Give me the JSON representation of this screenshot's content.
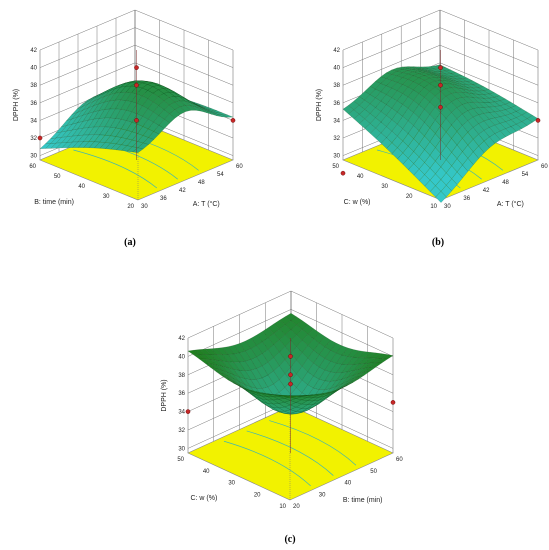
{
  "colors": {
    "floor": "#f2f200",
    "contour": "#3fb7b0",
    "surface_low": "#35c8c9",
    "surface_high": "#1f7a14",
    "grid": "#777777",
    "point": "#c62828"
  },
  "chart_data": [
    {
      "type": "surface3d",
      "panel_label": "(a)",
      "zlabel": "DPPH (%)",
      "xlabel": "A: T (°C)",
      "ylabel": "B: time (min)",
      "x_ticks": [
        "30",
        "36",
        "42",
        "48",
        "54",
        "60"
      ],
      "y_ticks": [
        "20",
        "30",
        "40",
        "50",
        "60"
      ],
      "z_ticks": [
        "30",
        "32",
        "34",
        "36",
        "38",
        "40",
        "42"
      ],
      "xlim": [
        30,
        60
      ],
      "ylim": [
        20,
        60
      ],
      "zlim": [
        30,
        42
      ],
      "surface_corners": {
        "x30_y20": 34.5,
        "x60_y20": 34.0,
        "x30_y60": 30.5,
        "x60_y60": 33.0
      },
      "peak": {
        "x": 45,
        "y": 38,
        "z": 38.5
      },
      "design_points_z": [
        40.0,
        38.0,
        34.0,
        34.0,
        32.0
      ]
    },
    {
      "type": "surface3d",
      "panel_label": "(b)",
      "zlabel": "DPPH (%)",
      "xlabel": "A: T (°C)",
      "ylabel": "C: w (%)",
      "x_ticks": [
        "30",
        "36",
        "42",
        "48",
        "54",
        "60"
      ],
      "y_ticks": [
        "10",
        "20",
        "30",
        "40",
        "50"
      ],
      "z_ticks": [
        "30",
        "32",
        "34",
        "36",
        "38",
        "40",
        "42"
      ],
      "xlim": [
        30,
        60
      ],
      "ylim": [
        10,
        50
      ],
      "zlim": [
        30,
        42
      ],
      "surface_corners": {
        "x30_y10": 29.0,
        "x60_y10": 34.0,
        "x30_y50": 35.0,
        "x60_y50": 35.5
      },
      "peak": {
        "x": 45,
        "y": 32,
        "z": 37.5
      },
      "design_points_z": [
        40.0,
        38.0,
        35.5,
        34.0,
        28.0
      ]
    },
    {
      "type": "surface3d",
      "panel_label": "(c)",
      "zlabel": "DPPH (%)",
      "xlabel": "B: time (min)",
      "ylabel": "C: w (%)",
      "x_ticks": [
        "20",
        "30",
        "40",
        "50",
        "60"
      ],
      "y_ticks": [
        "10",
        "20",
        "30",
        "40",
        "50"
      ],
      "z_ticks": [
        "30",
        "32",
        "34",
        "36",
        "38",
        "40",
        "42"
      ],
      "xlim": [
        20,
        60
      ],
      "ylim": [
        10,
        50
      ],
      "zlim": [
        30,
        42
      ],
      "surface_corners": {
        "x20_y10": 41.0,
        "x60_y10": 40.5,
        "x20_y50": 41.0,
        "x60_y50": 40.0
      },
      "saddle": {
        "x": 40,
        "y": 30,
        "z": 34.0
      },
      "design_points_z": [
        40.0,
        38.0,
        37.0,
        35.0,
        34.0
      ]
    }
  ]
}
